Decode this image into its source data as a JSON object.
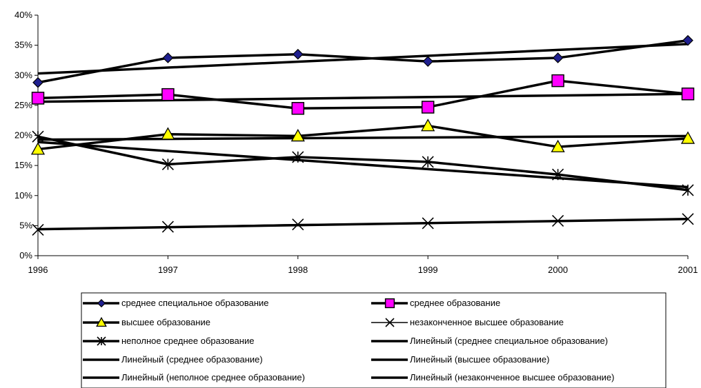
{
  "chart_data": {
    "type": "line",
    "title": "",
    "xlabel": "",
    "ylabel": "",
    "x": [
      "1996",
      "1997",
      "1998",
      "1999",
      "2000",
      "2001"
    ],
    "ylim": [
      0,
      40
    ],
    "yticks": [
      "0%",
      "5%",
      "10%",
      "15%",
      "20%",
      "25%",
      "30%",
      "35%",
      "40%"
    ],
    "grid": false,
    "legend_position": "bottom",
    "series": [
      {
        "name": "среднее специальное образование",
        "marker": "diamond",
        "marker_color": "#1f1f8f",
        "values": [
          28.8,
          32.9,
          33.5,
          32.3,
          32.9,
          35.8
        ]
      },
      {
        "name": "среднее образование",
        "marker": "square",
        "marker_color": "#ff00ff",
        "values": [
          26.2,
          26.8,
          24.5,
          24.7,
          29.1,
          26.9
        ]
      },
      {
        "name": "высшее образование",
        "marker": "triangle",
        "marker_color": "#ffff00",
        "values": [
          17.7,
          20.2,
          19.9,
          21.6,
          18.1,
          19.5
        ]
      },
      {
        "name": "незаконченное высшее образование",
        "marker": "x",
        "marker_color": "#000000",
        "values": [
          4.3,
          4.8,
          5.2,
          5.4,
          5.8,
          6.1
        ]
      },
      {
        "name": "неполное среднее образование",
        "marker": "star",
        "marker_color": "#000000",
        "values": [
          19.8,
          15.2,
          16.4,
          15.6,
          13.5,
          10.9
        ]
      }
    ],
    "trendlines": [
      {
        "name": "Линейный (среднее специальное образование)",
        "start": 30.3,
        "end": 35.2
      },
      {
        "name": "Линейный (среднее образование)",
        "start": 25.6,
        "end": 26.9
      },
      {
        "name": "Линейный (высшее образование)",
        "start": 19.3,
        "end": 19.9
      },
      {
        "name": "Линейный (неполное среднее образование)",
        "start": 18.9,
        "end": 11.4
      },
      {
        "name": "Линейный (незаконченное высшее образование)",
        "start": 4.4,
        "end": 6.1
      }
    ],
    "legend_entries": [
      {
        "label": "среднее специальное образование",
        "marker": "diamond",
        "marker_color": "#1f1f8f"
      },
      {
        "label": "среднее образование",
        "marker": "square",
        "marker_color": "#ff00ff"
      },
      {
        "label": "высшее образование",
        "marker": "triangle",
        "marker_color": "#ffff00"
      },
      {
        "label": "незаконченное высшее образование",
        "marker": "x",
        "marker_color": "#000000"
      },
      {
        "label": "неполное среднее образование",
        "marker": "star",
        "marker_color": "#000000"
      },
      {
        "label": "Линейный (среднее специальное образование)",
        "marker": "none",
        "marker_color": "#000000"
      },
      {
        "label": "Линейный (среднее образование)",
        "marker": "none",
        "marker_color": "#000000"
      },
      {
        "label": "Линейный (высшее образование)",
        "marker": "none",
        "marker_color": "#000000"
      },
      {
        "label": "Линейный (неполное среднее образование)",
        "marker": "none",
        "marker_color": "#000000"
      },
      {
        "label": "Линейный (незаконченное высшее образование)",
        "marker": "none",
        "marker_color": "#000000"
      }
    ]
  }
}
